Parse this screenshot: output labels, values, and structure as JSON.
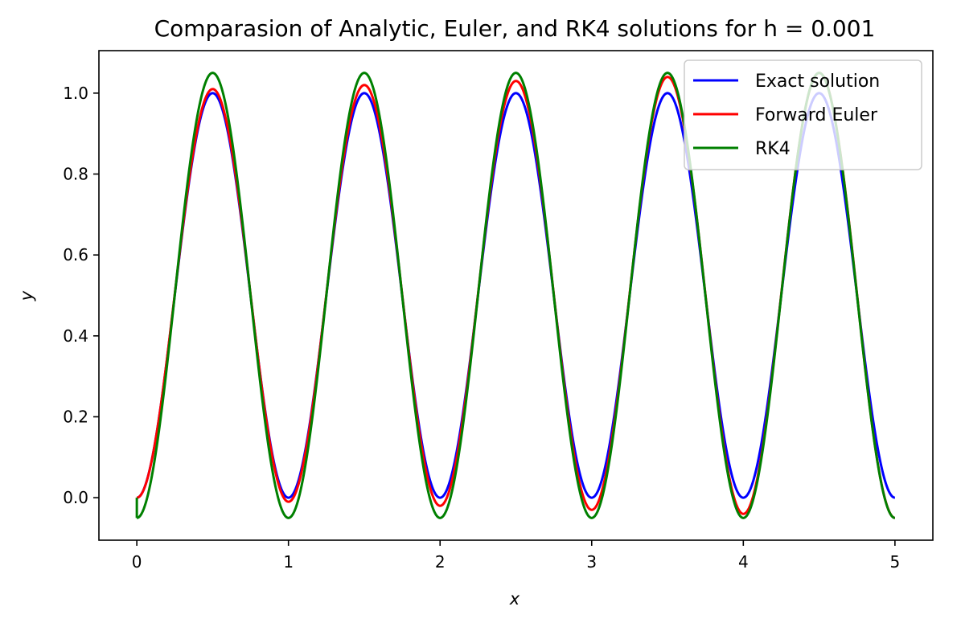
{
  "chart_data": {
    "type": "line",
    "title": "Comparasion of Analytic, Euler, and RK4 solutions for h = 0.001",
    "xlabel": "x",
    "ylabel": "y",
    "xlim": [
      -0.25,
      5.25
    ],
    "ylim": [
      -0.105,
      1.105
    ],
    "x_ticks": [
      0,
      1,
      2,
      3,
      4,
      5
    ],
    "x_tick_labels": [
      "0",
      "1",
      "2",
      "3",
      "4",
      "5"
    ],
    "y_ticks": [
      0.0,
      0.2,
      0.4,
      0.6,
      0.8,
      1.0
    ],
    "y_tick_labels": [
      "0.0",
      "0.2",
      "0.4",
      "0.6",
      "0.8",
      "1.0"
    ],
    "grid": false,
    "legend_position": "top-right",
    "x_range": [
      0,
      5
    ],
    "series": [
      {
        "name": "Exact solution",
        "color": "#0000ff",
        "x": [
          0,
          0.5,
          1,
          1.5,
          2,
          2.5,
          3,
          3.5,
          4,
          4.5,
          5
        ],
        "values": [
          0.0,
          1.0,
          0.0,
          1.0,
          0.0,
          1.0,
          0.0,
          1.0,
          0.0,
          1.0,
          0.0
        ]
      },
      {
        "name": "Forward Euler",
        "color": "#ff0000",
        "x": [
          0,
          0.5,
          1,
          1.5,
          2,
          2.5,
          3,
          3.5,
          4,
          4.5,
          5
        ],
        "values": [
          0.0,
          1.005,
          -0.01,
          1.015,
          -0.02,
          1.025,
          -0.03,
          1.035,
          -0.04,
          1.045,
          -0.05
        ]
      },
      {
        "name": "RK4",
        "color": "#008000",
        "x": [
          0,
          0.5,
          1,
          1.5,
          2,
          2.5,
          3,
          3.5,
          4,
          4.5,
          5
        ],
        "values": [
          -0.05,
          1.05,
          -0.05,
          1.05,
          -0.05,
          1.05,
          -0.05,
          1.05,
          -0.05,
          1.05,
          -0.05
        ]
      }
    ]
  }
}
